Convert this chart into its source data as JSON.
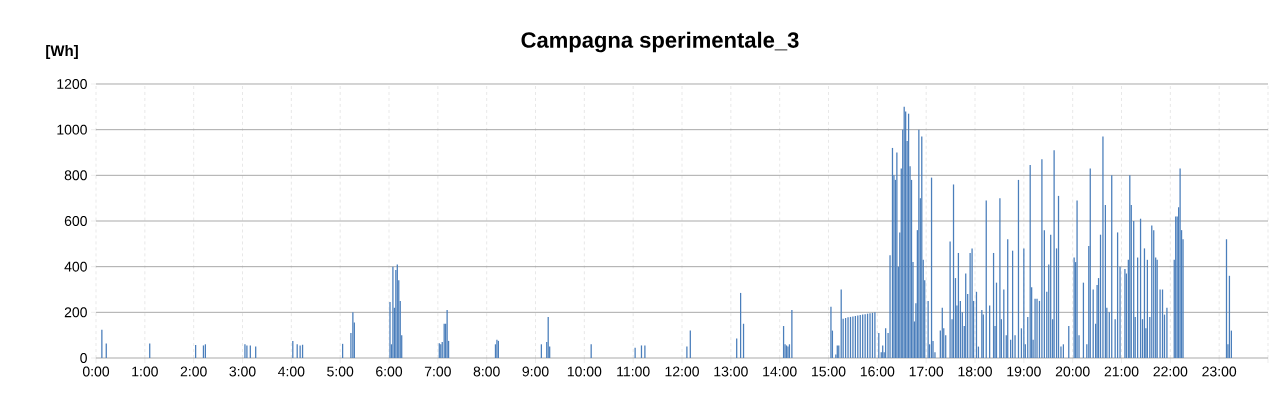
{
  "chart_data": {
    "type": "bar",
    "title": "Campagna sperimentale_3",
    "ylabel": "[Wh]",
    "color": "#4a7ebb",
    "x": [
      0.12,
      0.21,
      1.1,
      2.04,
      2.2,
      2.24,
      3.05,
      3.09,
      3.16,
      3.27,
      4.03,
      4.12,
      4.18,
      4.23,
      5.05,
      5.22,
      5.26,
      5.29,
      6.02,
      6.05,
      6.08,
      6.11,
      6.14,
      6.17,
      6.2,
      6.23,
      6.26,
      7.03,
      7.06,
      7.09,
      7.13,
      7.16,
      7.19,
      7.22,
      8.18,
      8.21,
      8.24,
      9.12,
      9.23,
      9.26,
      9.29,
      10.14,
      11.04,
      11.17,
      11.24,
      12.1,
      12.17,
      13.12,
      13.2,
      13.26,
      14.08,
      14.11,
      14.14,
      14.17,
      14.2,
      14.25,
      15.05,
      15.08,
      15.15,
      15.18,
      15.21,
      15.26,
      15.3,
      15.35,
      15.4,
      15.45,
      15.5,
      15.55,
      15.6,
      15.65,
      15.7,
      15.75,
      15.8,
      15.85,
      15.9,
      15.95,
      16.03,
      16.08,
      16.11,
      16.14,
      16.17,
      16.22,
      16.26,
      16.31,
      16.34,
      16.37,
      16.4,
      16.43,
      16.46,
      16.49,
      16.52,
      16.55,
      16.58,
      16.61,
      16.64,
      16.67,
      16.7,
      16.73,
      16.76,
      16.79,
      16.82,
      16.85,
      16.88,
      16.91,
      16.94,
      16.97,
      17.04,
      17.07,
      17.11,
      17.14,
      17.18,
      17.29,
      17.33,
      17.36,
      17.4,
      17.49,
      17.53,
      17.56,
      17.6,
      17.63,
      17.66,
      17.7,
      17.74,
      17.78,
      17.81,
      17.85,
      17.9,
      17.94,
      17.97,
      18.03,
      18.07,
      18.14,
      18.17,
      18.23,
      18.3,
      18.38,
      18.41,
      18.44,
      18.51,
      18.54,
      18.59,
      18.64,
      18.67,
      18.73,
      18.77,
      18.82,
      18.89,
      18.95,
      19.0,
      19.03,
      19.08,
      19.13,
      19.16,
      19.19,
      19.23,
      19.27,
      19.32,
      19.37,
      19.42,
      19.47,
      19.51,
      19.55,
      19.59,
      19.62,
      19.67,
      19.71,
      19.76,
      19.81,
      19.92,
      20.03,
      20.06,
      20.09,
      20.13,
      20.22,
      20.29,
      20.33,
      20.36,
      20.42,
      20.47,
      20.5,
      20.53,
      20.57,
      20.62,
      20.67,
      20.7,
      20.75,
      20.8,
      20.87,
      20.92,
      20.97,
      21.07,
      21.1,
      21.14,
      21.17,
      21.2,
      21.25,
      21.28,
      21.33,
      21.39,
      21.43,
      21.47,
      21.5,
      21.53,
      21.58,
      21.62,
      21.66,
      21.7,
      21.73,
      21.79,
      21.84,
      21.88,
      21.93,
      22.08,
      22.11,
      22.14,
      22.17,
      22.2,
      22.23,
      22.26,
      23.15,
      23.18,
      23.21,
      23.25
    ],
    "values": [
      124,
      63,
      63,
      57,
      55,
      60,
      60,
      55,
      55,
      50,
      75,
      60,
      55,
      58,
      62,
      110,
      200,
      155,
      245,
      60,
      400,
      220,
      385,
      410,
      340,
      250,
      100,
      65,
      60,
      70,
      150,
      150,
      210,
      75,
      60,
      80,
      75,
      60,
      70,
      180,
      50,
      60,
      45,
      55,
      55,
      50,
      120,
      85,
      285,
      150,
      140,
      60,
      55,
      50,
      60,
      210,
      225,
      120,
      15,
      55,
      55,
      300,
      172,
      175,
      178,
      180,
      182,
      184,
      186,
      188,
      190,
      192,
      194,
      196,
      198,
      200,
      110,
      25,
      55,
      25,
      130,
      110,
      450,
      920,
      800,
      780,
      900,
      400,
      550,
      830,
      1000,
      1100,
      1080,
      950,
      1070,
      840,
      780,
      420,
      160,
      240,
      560,
      1000,
      700,
      970,
      430,
      340,
      250,
      60,
      790,
      75,
      25,
      120,
      220,
      130,
      100,
      510,
      170,
      760,
      350,
      230,
      460,
      250,
      200,
      140,
      370,
      280,
      460,
      480,
      250,
      290,
      50,
      210,
      190,
      690,
      230,
      460,
      140,
      330,
      700,
      170,
      300,
      100,
      520,
      80,
      470,
      100,
      780,
      130,
      480,
      60,
      180,
      845,
      310,
      80,
      260,
      260,
      250,
      870,
      560,
      290,
      410,
      540,
      170,
      910,
      480,
      710,
      50,
      60,
      140,
      440,
      420,
      690,
      100,
      330,
      60,
      490,
      830,
      300,
      150,
      320,
      350,
      540,
      970,
      670,
      220,
      200,
      800,
      170,
      550,
      400,
      390,
      370,
      430,
      800,
      670,
      600,
      180,
      440,
      610,
      170,
      480,
      130,
      430,
      180,
      580,
      560,
      440,
      430,
      300,
      300,
      190,
      220,
      430,
      620,
      620,
      660,
      830,
      560,
      520,
      520,
      60,
      360,
      120
    ],
    "xlim": [
      0,
      24
    ],
    "ylim": [
      0,
      1200
    ],
    "yticks": [
      0,
      200,
      400,
      600,
      800,
      1000,
      1200
    ],
    "xticks": [
      {
        "value": 0,
        "label": "0:00"
      },
      {
        "value": 1,
        "label": "1:00"
      },
      {
        "value": 2,
        "label": "2:00"
      },
      {
        "value": 3,
        "label": "3:00"
      },
      {
        "value": 4,
        "label": "4:00"
      },
      {
        "value": 5,
        "label": "5:00"
      },
      {
        "value": 6,
        "label": "6:00"
      },
      {
        "value": 7,
        "label": "7:00"
      },
      {
        "value": 8,
        "label": "8:00"
      },
      {
        "value": 9,
        "label": "9:00"
      },
      {
        "value": 10,
        "label": "10:00"
      },
      {
        "value": 11,
        "label": "11:00"
      },
      {
        "value": 12,
        "label": "12:00"
      },
      {
        "value": 13,
        "label": "13:00"
      },
      {
        "value": 14,
        "label": "14:00"
      },
      {
        "value": 15,
        "label": "15:00"
      },
      {
        "value": 16,
        "label": "16:00"
      },
      {
        "value": 17,
        "label": "17:00"
      },
      {
        "value": 18,
        "label": "18:00"
      },
      {
        "value": 19,
        "label": "19:00"
      },
      {
        "value": 20,
        "label": "20:00"
      },
      {
        "value": 21,
        "label": "21:00"
      },
      {
        "value": 22,
        "label": "22:00"
      },
      {
        "value": 23,
        "label": "23:00"
      },
      {
        "value": 24,
        "label": null
      }
    ],
    "grid": true
  }
}
